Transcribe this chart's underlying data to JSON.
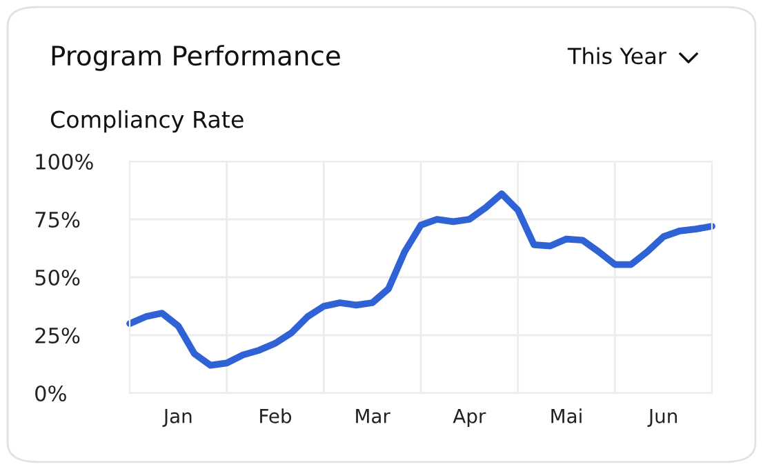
{
  "chart_data": {
    "type": "line",
    "title": "Program Performance",
    "subtitle": "Compliancy Rate",
    "annotations": [
      "This Year"
    ],
    "categories": [
      null,
      null,
      null,
      "Jan",
      null,
      null,
      null,
      null,
      null,
      "Feb",
      null,
      null,
      null,
      null,
      null,
      "Mar",
      null,
      null,
      null,
      null,
      null,
      "Apr",
      null,
      null,
      null,
      null,
      null,
      "Mai",
      null,
      null,
      null,
      null,
      null,
      "Jun",
      null,
      null,
      null
    ],
    "series": [
      {
        "color": "#2f62d4",
        "values": [
          30,
          33,
          34.5,
          29,
          17,
          12,
          13,
          16.5,
          18.5,
          21.5,
          26,
          33,
          37.5,
          39,
          38,
          39,
          45,
          61,
          72.5,
          75,
          74,
          75,
          80,
          86,
          79,
          64,
          63.5,
          66.5,
          66,
          61,
          55.5,
          55.5,
          61,
          67.5,
          70,
          70.8,
          72
        ]
      }
    ],
    "ylim": [
      0,
      100
    ],
    "yticks": [
      {
        "value": 0,
        "label": "0%"
      },
      {
        "value": 25,
        "label": "25%"
      },
      {
        "value": 50,
        "label": "50%"
      },
      {
        "value": 75,
        "label": "75%"
      },
      {
        "value": 100,
        "label": "100%"
      }
    ],
    "grid": true,
    "marker": "none",
    "line_style": "solid",
    "legend": false
  }
}
